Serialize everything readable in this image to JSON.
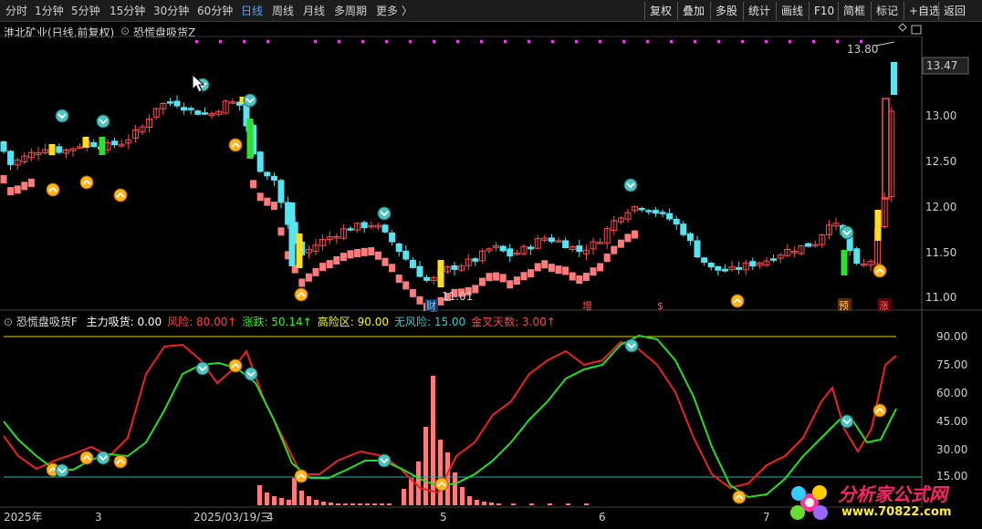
{
  "toolbar": {
    "periods": [
      "分时",
      "1分钟",
      "5分钟",
      "15分钟",
      "30分钟",
      "60分钟",
      "日线",
      "周线",
      "月线",
      "多周期",
      "更多 〉"
    ],
    "active_period": "日线",
    "right_buttons": [
      "复权",
      "叠加",
      "多股",
      "统计",
      "画线",
      "F10",
      "简框",
      "标记",
      "+自选",
      "返回"
    ]
  },
  "main_panel": {
    "stock_label": "淮北矿业(日线,前复权)",
    "indicator_label": "恐慌盘吸货Z",
    "price_axis": [
      "13.00",
      "12.50",
      "12.00",
      "11.50",
      "11.00"
    ],
    "current_price": "13.47",
    "high_label": "13.80",
    "low_label": "11.01",
    "markers": [
      "财",
      "增",
      "$",
      "预",
      "涨"
    ],
    "colors": {
      "up": "#ff4c4c",
      "down": "#54e4f2",
      "salmon": "#ff7b7b",
      "yellow": "#ffde21",
      "green": "#2ee02e",
      "magenta": "#ff33ff"
    }
  },
  "sub_panel": {
    "title": "恐慌盘吸货F",
    "fields": [
      {
        "name": "主力吸货",
        "value": "0.00",
        "color": "#ffffff"
      },
      {
        "name": "风险",
        "value": "80.00↑",
        "color": "#ff4444"
      },
      {
        "name": "涨跌",
        "value": "50.14↑",
        "color": "#33ee33"
      },
      {
        "name": "高险区",
        "value": "90.00",
        "color": "#ffff00"
      },
      {
        "name": "无风险",
        "value": "15.00",
        "color": "#33cccc"
      },
      {
        "name": "金叉天数",
        "value": "3.00↑",
        "color": "#ff4444"
      }
    ],
    "axis": [
      "90.00",
      "75.00",
      "60.00",
      "45.00",
      "30.00",
      "15.00"
    ]
  },
  "date_axis": [
    "2025年",
    "3",
    "2025/03/19/三",
    "4",
    "5",
    "6",
    "7"
  ],
  "watermark": {
    "text": "分析家公式网",
    "url": "www.70822.com"
  }
}
